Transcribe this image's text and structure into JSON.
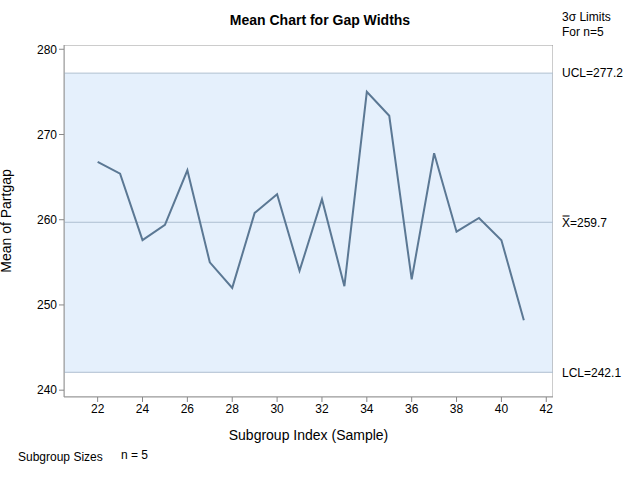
{
  "chart_data": {
    "type": "line",
    "title": "Mean Chart for Gap Widths",
    "x_label": "Subgroup Index (Sample)",
    "y_label": "Mean of Partgap",
    "x": [
      22,
      23,
      24,
      25,
      26,
      27,
      28,
      29,
      30,
      31,
      32,
      33,
      34,
      35,
      36,
      37,
      38,
      39,
      40,
      41
    ],
    "values": [
      266.8,
      265.4,
      257.6,
      259.4,
      265.8,
      255.0,
      252.0,
      260.8,
      263.0,
      254.0,
      262.4,
      252.2,
      275.0,
      272.2,
      253.0,
      267.8,
      258.6,
      260.2,
      257.6,
      248.2
    ],
    "color": "#5b7894",
    "xlim": [
      20.5,
      42.3
    ],
    "xticks": [
      22,
      24,
      26,
      28,
      30,
      32,
      34,
      36,
      38,
      40,
      42
    ],
    "ylim": [
      239.2,
      280.5
    ],
    "yticks": [
      240,
      250,
      260,
      270,
      280
    ],
    "grid": false,
    "marker": "none",
    "line_style": "solid",
    "control_limits": [
      {
        "value": 277.2,
        "label": "UCL=277.2"
      },
      {
        "value": 259.7,
        "label": "X̿=259.7"
      },
      {
        "value": 242.1,
        "label": "LCL=242.1"
      }
    ],
    "limits_note": [
      "3σ Limits",
      "For n=5"
    ],
    "subgroup_sizes": {
      "label": "Subgroup Sizes",
      "text": "n = 5"
    }
  }
}
